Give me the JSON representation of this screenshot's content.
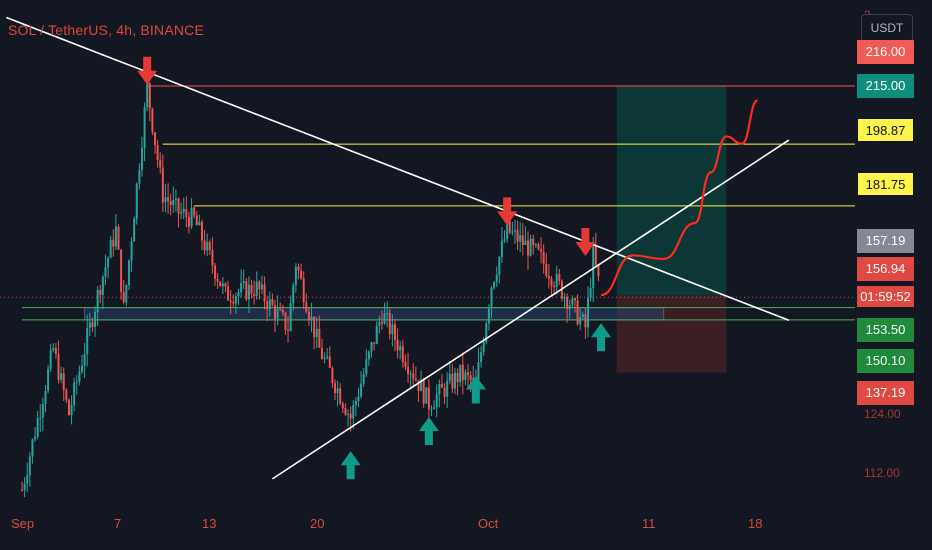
{
  "chart_data": {
    "type": "candlestick",
    "title": "SOL / TetherUS, 4h, BINANCE",
    "currency": "USDT",
    "x_ticks": [
      "Sep",
      "7",
      "13",
      "20",
      "Oct",
      "11",
      "18"
    ],
    "y_ticks": [
      "124.00",
      "112.00"
    ],
    "y_tick_top": "2",
    "ylim": [
      105,
      234
    ],
    "price_labels": [
      {
        "value": "216.00",
        "style": "redtop"
      },
      {
        "value": "215.00",
        "style": "teal"
      },
      {
        "value": "198.87",
        "style": "yellow"
      },
      {
        "value": "181.75",
        "style": "yellow"
      },
      {
        "value": "157.19",
        "style": "gray"
      },
      {
        "value": "156.94",
        "style": "red"
      },
      {
        "value": "153.50",
        "style": "green"
      },
      {
        "value": "150.10",
        "style": "green"
      },
      {
        "value": "137.19",
        "style": "red"
      }
    ],
    "countdown": "01:59:52",
    "horizontal_levels": [
      {
        "price": 215.0,
        "color": "#ef5350",
        "from_date": "Sep 9"
      },
      {
        "price": 198.87,
        "color": "#fff34c",
        "from_date": "Sep 10"
      },
      {
        "price": 181.75,
        "color": "#fff34c",
        "from_date": "Sep 12"
      },
      {
        "price": 153.5,
        "color": "#4caf50",
        "from_date": "Sep 1"
      },
      {
        "price": 150.1,
        "color": "#4caf50",
        "from_date": "Sep 1"
      }
    ],
    "support_zone": {
      "from_date": "Sep 5",
      "to_date": "Oct 12",
      "low": 150.1,
      "high": 153.5
    },
    "trendlines": [
      {
        "name": "descending",
        "from": {
          "date": "Aug 31",
          "price": 234
        },
        "to": {
          "date": "Oct 20",
          "price": 150
        }
      },
      {
        "name": "ascending",
        "from": {
          "date": "Sep 17",
          "price": 106
        },
        "to": {
          "date": "Oct 20",
          "price": 200
        }
      }
    ],
    "position": {
      "entry": 156.94,
      "target": 215.0,
      "stop": 135.5,
      "from_date": "Oct 9",
      "to_date": "Oct 16"
    },
    "down_arrows": [
      {
        "date": "Sep 9",
        "price": 214.5
      },
      {
        "date": "Oct 2",
        "price": 175.5
      },
      {
        "date": "Oct 7",
        "price": 167.0
      }
    ],
    "up_arrows": [
      {
        "date": "Sep 22",
        "price": 114.5
      },
      {
        "date": "Sep 27",
        "price": 124.0
      },
      {
        "date": "Sep 30",
        "price": 135.5
      },
      {
        "date": "Oct 8",
        "price": 150.0
      }
    ],
    "projection_path": [
      {
        "date": "Oct 8",
        "price": 157
      },
      {
        "date": "Oct 10",
        "price": 168
      },
      {
        "date": "Oct 12",
        "price": 167
      },
      {
        "date": "Oct 14",
        "price": 177
      },
      {
        "date": "Oct 15",
        "price": 191
      },
      {
        "date": "Oct 16",
        "price": 201
      },
      {
        "date": "Oct 17",
        "price": 199
      },
      {
        "date": "Oct 18",
        "price": 211
      }
    ],
    "ohlc_keypoints": [
      {
        "date": "Sep 1",
        "price": 103
      },
      {
        "date": "Sep 3",
        "price": 142
      },
      {
        "date": "Sep 4",
        "price": 124
      },
      {
        "date": "Sep 6",
        "price": 160
      },
      {
        "date": "Sep 7",
        "price": 175
      },
      {
        "date": "Sep 7.5",
        "price": 153
      },
      {
        "date": "Sep 9",
        "price": 214.5
      },
      {
        "date": "Sep 10",
        "price": 185
      },
      {
        "date": "Sep 11",
        "price": 180
      },
      {
        "date": "Sep 12",
        "price": 178
      },
      {
        "date": "Sep 14",
        "price": 157
      },
      {
        "date": "Sep 16",
        "price": 159
      },
      {
        "date": "Sep 18",
        "price": 148
      },
      {
        "date": "Sep 18.5",
        "price": 166
      },
      {
        "date": "Sep 20",
        "price": 142
      },
      {
        "date": "Sep 22",
        "price": 123
      },
      {
        "date": "Sep 24",
        "price": 152
      },
      {
        "date": "Sep 27",
        "price": 127
      },
      {
        "date": "Sep 29",
        "price": 135
      },
      {
        "date": "Sep 30",
        "price": 132
      },
      {
        "date": "Oct 1",
        "price": 160
      },
      {
        "date": "Oct 2",
        "price": 175
      },
      {
        "date": "Oct 4",
        "price": 168
      },
      {
        "date": "Oct 6",
        "price": 155
      },
      {
        "date": "Oct 7",
        "price": 148
      },
      {
        "date": "Oct 7.5",
        "price": 168
      },
      {
        "date": "Oct 8",
        "price": 157
      }
    ]
  }
}
